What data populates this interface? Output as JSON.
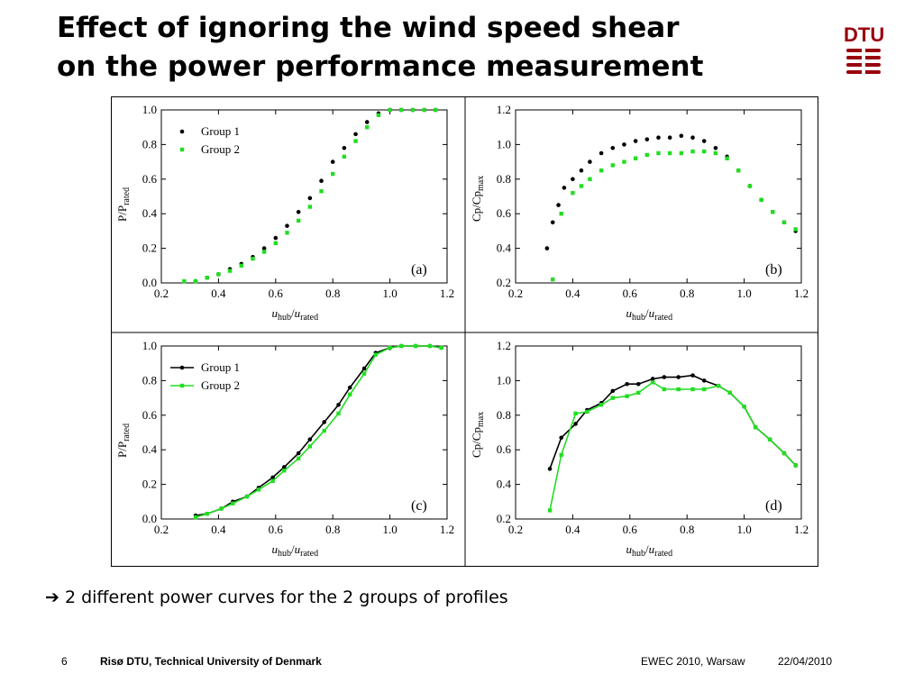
{
  "slide": {
    "title_line1": "Effect of ignoring the wind speed shear",
    "title_line2": "on the power performance measurement",
    "logo_text": "DTU",
    "bullet_arrow": "➔",
    "bullet_text": "2 different power curves for the 2 groups of profiles",
    "footer": {
      "page_number": "6",
      "organization": "Risø DTU, Technical University of Denmark",
      "event": "EWEC 2010, Warsaw",
      "date": "22/04/2010"
    }
  },
  "colors": {
    "group1": "#000000",
    "group2": "#22dd22",
    "logo": "#99000d"
  },
  "chart_data": [
    {
      "id": "a",
      "type": "scatter",
      "panel_label": "(a)",
      "xlabel_main": "u",
      "xlabel_sub1": "hub",
      "xlabel_slash": "/",
      "xlabel_main2": "u",
      "xlabel_sub2": "rated",
      "ylabel_main": "P/P",
      "ylabel_sub": "rated",
      "xlim": [
        0.2,
        1.2
      ],
      "ylim": [
        0.0,
        1.0
      ],
      "xticks": [
        "0.2",
        "0.4",
        "0.6",
        "0.8",
        "1.0",
        "1.2"
      ],
      "yticks": [
        "0.0",
        "0.2",
        "0.4",
        "0.6",
        "0.8",
        "1.0"
      ],
      "legend": [
        "Group 1",
        "Group 2"
      ],
      "legend_position": "top-left",
      "series": [
        {
          "name": "Group 1",
          "x": [
            0.32,
            0.36,
            0.4,
            0.44,
            0.48,
            0.52,
            0.56,
            0.6,
            0.64,
            0.68,
            0.72,
            0.76,
            0.8,
            0.84,
            0.88,
            0.92,
            0.96,
            1.0,
            1.04,
            1.08,
            1.12,
            1.16
          ],
          "y": [
            0.01,
            0.03,
            0.05,
            0.08,
            0.11,
            0.15,
            0.2,
            0.26,
            0.33,
            0.41,
            0.49,
            0.59,
            0.7,
            0.78,
            0.86,
            0.93,
            0.98,
            1.0,
            1.0,
            1.0,
            1.0,
            1.0
          ]
        },
        {
          "name": "Group 2",
          "x": [
            0.28,
            0.32,
            0.36,
            0.4,
            0.44,
            0.48,
            0.52,
            0.56,
            0.6,
            0.64,
            0.68,
            0.72,
            0.76,
            0.8,
            0.84,
            0.88,
            0.92,
            0.96,
            1.0,
            1.04,
            1.08,
            1.12,
            1.16
          ],
          "y": [
            0.01,
            0.01,
            0.03,
            0.05,
            0.07,
            0.1,
            0.14,
            0.18,
            0.23,
            0.29,
            0.36,
            0.44,
            0.53,
            0.63,
            0.73,
            0.82,
            0.9,
            0.97,
            1.0,
            1.0,
            1.0,
            1.0,
            1.0
          ]
        }
      ]
    },
    {
      "id": "b",
      "type": "scatter",
      "panel_label": "(b)",
      "xlabel_main": "u",
      "xlabel_sub1": "hub",
      "xlabel_slash": "/",
      "xlabel_main2": "u",
      "xlabel_sub2": "rated",
      "ylabel_main": "Cp/Cp",
      "ylabel_sub": "max",
      "xlim": [
        0.2,
        1.2
      ],
      "ylim": [
        0.2,
        1.2
      ],
      "xticks": [
        "0.2",
        "0.4",
        "0.6",
        "0.8",
        "1.0",
        "1.2"
      ],
      "yticks": [
        "0.2",
        "0.4",
        "0.6",
        "0.8",
        "1.0",
        "1.2"
      ],
      "series": [
        {
          "name": "Group 1",
          "x": [
            0.31,
            0.33,
            0.35,
            0.37,
            0.4,
            0.43,
            0.46,
            0.5,
            0.54,
            0.58,
            0.62,
            0.66,
            0.7,
            0.74,
            0.78,
            0.82,
            0.86,
            0.9,
            0.94,
            0.98,
            1.02,
            1.06,
            1.1,
            1.14,
            1.18
          ],
          "y": [
            0.4,
            0.55,
            0.65,
            0.75,
            0.8,
            0.85,
            0.9,
            0.95,
            0.98,
            1.0,
            1.02,
            1.03,
            1.04,
            1.04,
            1.05,
            1.04,
            1.02,
            0.98,
            0.93,
            0.85,
            0.76,
            0.68,
            0.61,
            0.55,
            0.5
          ]
        },
        {
          "name": "Group 2",
          "x": [
            0.33,
            0.36,
            0.4,
            0.43,
            0.46,
            0.5,
            0.54,
            0.58,
            0.62,
            0.66,
            0.7,
            0.74,
            0.78,
            0.82,
            0.86,
            0.9,
            0.94,
            0.98,
            1.02,
            1.06,
            1.1,
            1.14,
            1.18
          ],
          "y": [
            0.22,
            0.6,
            0.72,
            0.76,
            0.8,
            0.85,
            0.88,
            0.9,
            0.92,
            0.94,
            0.95,
            0.95,
            0.95,
            0.96,
            0.96,
            0.95,
            0.92,
            0.85,
            0.76,
            0.68,
            0.61,
            0.55,
            0.51
          ]
        }
      ]
    },
    {
      "id": "c",
      "type": "line",
      "panel_label": "(c)",
      "xlabel_main": "u",
      "xlabel_sub1": "hub",
      "xlabel_slash": "/",
      "xlabel_main2": "u",
      "xlabel_sub2": "rated",
      "ylabel_main": "P/P",
      "ylabel_sub": "rated",
      "xlim": [
        0.2,
        1.2
      ],
      "ylim": [
        0.0,
        1.0
      ],
      "xticks": [
        "0.2",
        "0.4",
        "0.6",
        "0.8",
        "1.0",
        "1.2"
      ],
      "yticks": [
        "0.0",
        "0.2",
        "0.4",
        "0.6",
        "0.8",
        "1.0"
      ],
      "legend": [
        "Group 1",
        "Group 2"
      ],
      "legend_position": "top-left",
      "series": [
        {
          "name": "Group 1",
          "x": [
            0.32,
            0.36,
            0.41,
            0.45,
            0.5,
            0.54,
            0.59,
            0.63,
            0.68,
            0.72,
            0.77,
            0.82,
            0.86,
            0.91,
            0.95,
            1.0,
            1.04,
            1.09,
            1.14,
            1.18
          ],
          "y": [
            0.02,
            0.03,
            0.06,
            0.1,
            0.13,
            0.18,
            0.24,
            0.3,
            0.38,
            0.46,
            0.56,
            0.66,
            0.76,
            0.87,
            0.96,
            0.99,
            1.0,
            1.0,
            1.0,
            0.99
          ]
        },
        {
          "name": "Group 2",
          "x": [
            0.32,
            0.36,
            0.41,
            0.45,
            0.5,
            0.54,
            0.59,
            0.63,
            0.68,
            0.72,
            0.77,
            0.82,
            0.86,
            0.91,
            0.95,
            1.0,
            1.04,
            1.09,
            1.14,
            1.18
          ],
          "y": [
            0.01,
            0.03,
            0.06,
            0.09,
            0.13,
            0.17,
            0.22,
            0.28,
            0.35,
            0.42,
            0.51,
            0.61,
            0.72,
            0.84,
            0.95,
            0.99,
            1.0,
            1.0,
            1.0,
            0.99
          ]
        }
      ]
    },
    {
      "id": "d",
      "type": "line",
      "panel_label": "(d)",
      "xlabel_main": "u",
      "xlabel_sub1": "hub",
      "xlabel_slash": "/",
      "xlabel_main2": "u",
      "xlabel_sub2": "rated",
      "ylabel_main": "Cp/Cp",
      "ylabel_sub": "max",
      "xlim": [
        0.2,
        1.2
      ],
      "ylim": [
        0.2,
        1.2
      ],
      "xticks": [
        "0.2",
        "0.4",
        "0.6",
        "0.8",
        "1.0",
        "1.2"
      ],
      "yticks": [
        "0.2",
        "0.4",
        "0.6",
        "0.8",
        "1.0",
        "1.2"
      ],
      "series": [
        {
          "name": "Group 1",
          "x": [
            0.32,
            0.36,
            0.41,
            0.45,
            0.5,
            0.54,
            0.59,
            0.63,
            0.68,
            0.72,
            0.77,
            0.82,
            0.86,
            0.91,
            0.95,
            1.0,
            1.04,
            1.09,
            1.14,
            1.18
          ],
          "y": [
            0.49,
            0.67,
            0.75,
            0.83,
            0.87,
            0.94,
            0.98,
            0.98,
            1.01,
            1.02,
            1.02,
            1.03,
            1.0,
            0.97,
            0.93,
            0.85,
            0.73,
            0.66,
            0.58,
            0.51
          ]
        },
        {
          "name": "Group 2",
          "x": [
            0.32,
            0.36,
            0.41,
            0.45,
            0.5,
            0.54,
            0.59,
            0.63,
            0.68,
            0.72,
            0.77,
            0.82,
            0.86,
            0.91,
            0.95,
            1.0,
            1.04,
            1.09,
            1.14,
            1.18
          ],
          "y": [
            0.25,
            0.57,
            0.81,
            0.82,
            0.86,
            0.9,
            0.91,
            0.93,
            0.99,
            0.95,
            0.95,
            0.95,
            0.95,
            0.97,
            0.93,
            0.85,
            0.73,
            0.66,
            0.58,
            0.51
          ]
        }
      ]
    }
  ]
}
